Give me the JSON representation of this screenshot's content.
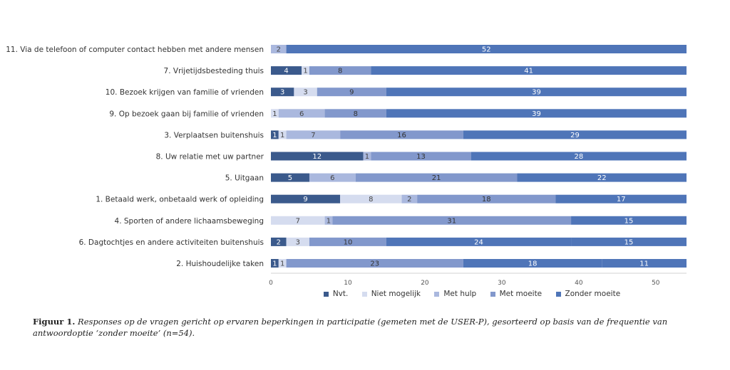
{
  "chart_data": {
    "type": "bar",
    "orientation": "horizontal",
    "stacked": true,
    "categories": [
      "11. Via de telefoon of computer contact hebben met andere mensen",
      "7. Vrijetijdsbesteding thuis",
      "10. Bezoek krijgen van familie of vrienden",
      "9. Op bezoek gaan bij familie of vrienden",
      "3. Verplaatsen buitenshuis",
      "8. Uw relatie met uw partner",
      "5. Uitgaan",
      "1. Betaald werk, onbetaald werk of opleiding",
      "4. Sporten of andere lichaamsbeweging",
      "6. Dagtochtjes en andere activiteiten buitenshuis",
      "2. Huishoudelijke taken"
    ],
    "series": [
      {
        "name": "Nvt.",
        "color": "#3b5a8c",
        "label_color": "#ffffff",
        "values": [
          0,
          4,
          3,
          0,
          1,
          12,
          5,
          9,
          0,
          2,
          1
        ]
      },
      {
        "name": "Niet mogelijk",
        "color": "#d5dcef",
        "label_color": "#444444",
        "values": [
          0,
          1,
          3,
          1,
          1,
          0,
          0,
          8,
          7,
          3,
          1
        ]
      },
      {
        "name": "Met hulp",
        "color": "#aab8de",
        "label_color": "#444444",
        "values": [
          2,
          0,
          0,
          6,
          7,
          1,
          6,
          2,
          1,
          0,
          0
        ]
      },
      {
        "name": "Met moeite",
        "color": "#8298cc",
        "label_color": "#333333",
        "values": [
          0,
          8,
          9,
          8,
          16,
          13,
          21,
          18,
          31,
          10,
          23
        ]
      },
      {
        "name": "Zonder moeite",
        "color": "#4f75b8",
        "label_color": "#ffffff",
        "values": [
          52,
          41,
          39,
          39,
          29,
          28,
          22,
          17,
          15,
          24,
          18
        ]
      },
      {
        "name": "",
        "color": "#4f75b8",
        "label_color": "#ffffff",
        "values": [
          0,
          0,
          0,
          0,
          0,
          0,
          0,
          0,
          0,
          15,
          11
        ]
      }
    ],
    "xlim": [
      0,
      54
    ],
    "xticks": [
      0,
      10,
      20,
      30,
      40,
      50
    ],
    "legend_position": "bottom",
    "grid": false
  },
  "legend": [
    {
      "label": "Nvt.",
      "color": "#3b5a8c"
    },
    {
      "label": "Niet mogelijk",
      "color": "#d5dcef"
    },
    {
      "label": "Met hulp",
      "color": "#aab8de"
    },
    {
      "label": "Met moeite",
      "color": "#8298cc"
    },
    {
      "label": "Zonder moeite",
      "color": "#4f75b8"
    }
  ],
  "caption": {
    "label": "Figuur 1.",
    "text": "Responses op de vragen gericht op ervaren beperkingen in participatie (gemeten met de USER-P), gesorteerd op basis van de frequentie van antwoordoptie ‘zonder moeite’ (n=54)."
  }
}
